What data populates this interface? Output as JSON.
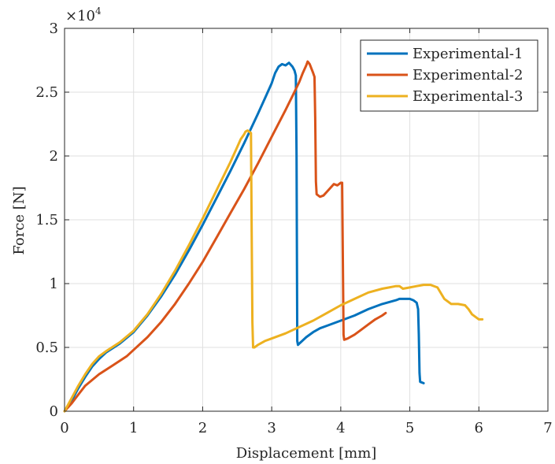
{
  "chart_data": {
    "type": "line",
    "xlabel": "Displacement [mm]",
    "ylabel": "Force [N]",
    "y_multiplier": "×10",
    "y_multiplier_exp": "4",
    "xlim": [
      0,
      7
    ],
    "ylim": [
      0,
      3
    ],
    "x_ticks": [
      0,
      1,
      2,
      3,
      4,
      5,
      6,
      7
    ],
    "y_ticks": [
      0,
      0.5,
      1,
      1.5,
      2,
      2.5,
      3
    ],
    "y_tick_labels": [
      "0",
      "0.5",
      "1",
      "1.5",
      "2",
      "2.5",
      "3"
    ],
    "grid": true,
    "legend_position": "top-right",
    "series": [
      {
        "name": "Experimental-1",
        "color": "#0072BD",
        "x": [
          0,
          0.1,
          0.2,
          0.3,
          0.4,
          0.5,
          0.6,
          0.8,
          1.0,
          1.2,
          1.4,
          1.6,
          1.8,
          2.0,
          2.2,
          2.4,
          2.6,
          2.8,
          2.9,
          3.0,
          3.05,
          3.1,
          3.15,
          3.2,
          3.25,
          3.3,
          3.33,
          3.35,
          3.36,
          3.37,
          3.38,
          3.4,
          3.5,
          3.6,
          3.7,
          3.8,
          4.0,
          4.2,
          4.4,
          4.6,
          4.8,
          4.85,
          4.9,
          5.0,
          5.05,
          5.1,
          5.12,
          5.13,
          5.14,
          5.15,
          5.2
        ],
        "y": [
          0,
          0.08,
          0.18,
          0.27,
          0.35,
          0.41,
          0.46,
          0.53,
          0.62,
          0.75,
          0.9,
          1.07,
          1.26,
          1.46,
          1.67,
          1.88,
          2.1,
          2.33,
          2.45,
          2.57,
          2.65,
          2.7,
          2.72,
          2.71,
          2.73,
          2.7,
          2.67,
          2.63,
          2.0,
          0.55,
          0.52,
          0.53,
          0.58,
          0.62,
          0.65,
          0.67,
          0.71,
          0.75,
          0.8,
          0.84,
          0.87,
          0.88,
          0.88,
          0.88,
          0.87,
          0.85,
          0.8,
          0.6,
          0.3,
          0.23,
          0.22
        ]
      },
      {
        "name": "Experimental-2",
        "color": "#D95319",
        "x": [
          0,
          0.1,
          0.2,
          0.3,
          0.5,
          0.7,
          0.9,
          1.0,
          1.2,
          1.4,
          1.6,
          1.8,
          2.0,
          2.2,
          2.4,
          2.6,
          2.8,
          3.0,
          3.2,
          3.3,
          3.4,
          3.45,
          3.5,
          3.52,
          3.55,
          3.6,
          3.62,
          3.63,
          3.64,
          3.65,
          3.7,
          3.75,
          3.8,
          3.85,
          3.9,
          3.95,
          4.0,
          4.02,
          4.03,
          4.04,
          4.05,
          4.1,
          4.2,
          4.3,
          4.4,
          4.5,
          4.6,
          4.65
        ],
        "y": [
          0,
          0.06,
          0.13,
          0.2,
          0.29,
          0.36,
          0.43,
          0.48,
          0.58,
          0.7,
          0.84,
          1.0,
          1.17,
          1.36,
          1.55,
          1.74,
          1.94,
          2.15,
          2.36,
          2.47,
          2.58,
          2.65,
          2.71,
          2.74,
          2.72,
          2.65,
          2.62,
          2.3,
          1.8,
          1.7,
          1.68,
          1.69,
          1.72,
          1.75,
          1.78,
          1.77,
          1.79,
          1.79,
          1.2,
          0.6,
          0.56,
          0.57,
          0.6,
          0.64,
          0.68,
          0.72,
          0.75,
          0.77
        ]
      },
      {
        "name": "Experimental-3",
        "color": "#EDB120",
        "x": [
          0,
          0.1,
          0.2,
          0.3,
          0.4,
          0.5,
          0.6,
          0.8,
          1.0,
          1.2,
          1.4,
          1.6,
          1.8,
          2.0,
          2.2,
          2.4,
          2.5,
          2.55,
          2.6,
          2.62,
          2.65,
          2.7,
          2.71,
          2.72,
          2.73,
          2.75,
          2.8,
          2.9,
          3.0,
          3.2,
          3.4,
          3.6,
          3.8,
          4.0,
          4.2,
          4.4,
          4.6,
          4.7,
          4.8,
          4.85,
          4.9,
          5.0,
          5.1,
          5.2,
          5.3,
          5.4,
          5.5,
          5.6,
          5.7,
          5.8,
          5.85,
          5.9,
          6.0,
          6.05
        ],
        "y": [
          0,
          0.1,
          0.2,
          0.29,
          0.37,
          0.43,
          0.47,
          0.54,
          0.63,
          0.76,
          0.92,
          1.1,
          1.3,
          1.51,
          1.73,
          1.95,
          2.07,
          2.13,
          2.17,
          2.19,
          2.2,
          2.18,
          1.4,
          0.7,
          0.5,
          0.5,
          0.52,
          0.55,
          0.57,
          0.61,
          0.66,
          0.71,
          0.77,
          0.83,
          0.88,
          0.93,
          0.96,
          0.97,
          0.98,
          0.98,
          0.96,
          0.97,
          0.98,
          0.99,
          0.99,
          0.97,
          0.88,
          0.84,
          0.84,
          0.83,
          0.8,
          0.76,
          0.72,
          0.72
        ]
      }
    ]
  }
}
